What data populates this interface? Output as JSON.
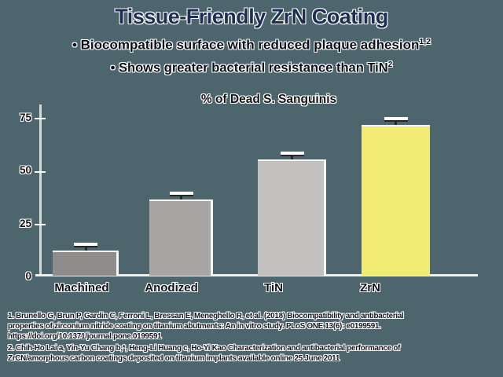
{
  "slide": {
    "title": "Tissue-Friendly ZrN Coating",
    "bullets": [
      {
        "marker": "•",
        "text": " Biocompatible surface with reduced plaque adhesion",
        "sup": "1,2"
      },
      {
        "marker": "•",
        "text": " Shows greater bacterial resistance than TiN",
        "sup": "2"
      }
    ],
    "footnotes": [
      {
        "line1": "1. Brunello G, Brun P, Gardin C, Ferroni L, Bressan E, Meneghello R, et al. (2018) Biocompatibility and antibacterial",
        "line2": "properties of zirconium nitride coating on titanium abutments: An in vitro study. PLoS ONE 13(6): e0199591.",
        "line3": "https://doi.org/10.1371/journal.pone.0199591"
      },
      {
        "line1": "2. Chih-Ho Lai a, Yin-Yu Chang b,*, Heng-Li Huang c, Ho-Yi Kao Characterization and antibacterial performance of",
        "line2": "ZrCN/amorphous carbon coatings deposited on titanium implants available online 25 June 2011"
      }
    ]
  },
  "chart_data": {
    "type": "bar",
    "title": "% of Dead S. Sanguinis",
    "categories": [
      "Machined",
      "Anodized",
      "TiN",
      "ZrN"
    ],
    "values": [
      12,
      36,
      55,
      71
    ],
    "errors": [
      2,
      2,
      3,
      3
    ],
    "yticks": [
      0,
      25,
      50,
      75
    ],
    "ylim": [
      0,
      80
    ],
    "xlabel": "",
    "ylabel": "",
    "grid": false,
    "legend": "none",
    "bar_colors": [
      "#8e8d8b",
      "#a8a6a4",
      "#c2c1bf",
      "#f2ec74"
    ]
  },
  "colors": {
    "background": "#4d666e",
    "title_text": "#1f2d54",
    "body_text": "#0a0e18",
    "text_outline": "#ffffff",
    "axis": "#d8d8d4",
    "baseline": "#efefeb",
    "error_bar": "#262626",
    "highlight_bar": "#f2ec74"
  }
}
